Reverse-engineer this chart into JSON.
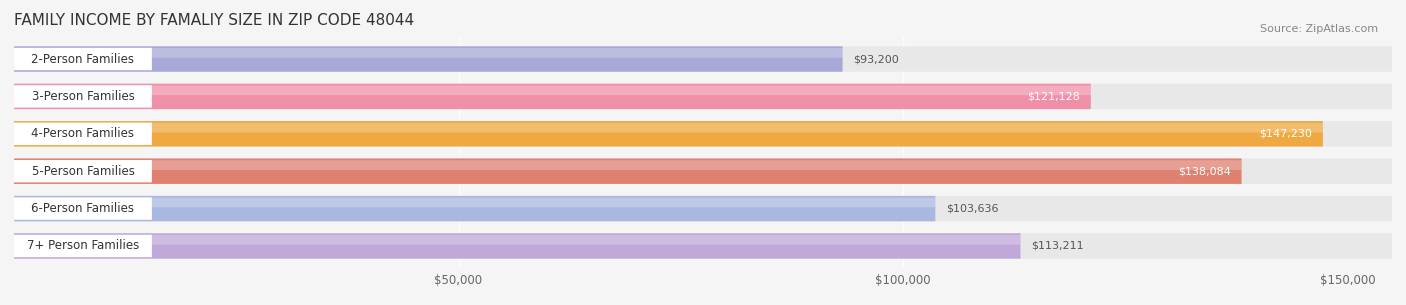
{
  "title": "FAMILY INCOME BY FAMALIY SIZE IN ZIP CODE 48044",
  "source": "Source: ZipAtlas.com",
  "categories": [
    "2-Person Families",
    "3-Person Families",
    "4-Person Families",
    "5-Person Families",
    "6-Person Families",
    "7+ Person Families"
  ],
  "values": [
    93200,
    121128,
    147230,
    138084,
    103636,
    113211
  ],
  "bar_colors": [
    "#a8a8d8",
    "#f090a8",
    "#f0a840",
    "#e08070",
    "#a8b8e0",
    "#c0a8d8"
  ],
  "label_colors": [
    "#444444",
    "#ffffff",
    "#ffffff",
    "#ffffff",
    "#444444",
    "#ffffff"
  ],
  "background_color": "#f5f5f5",
  "bar_background": "#e8e8e8",
  "xlim": [
    0,
    155000
  ],
  "xticks": [
    0,
    50000,
    100000,
    150000
  ],
  "xticklabels": [
    "",
    "$50,000",
    "$100,000",
    "$150,000"
  ],
  "title_fontsize": 11,
  "source_fontsize": 8,
  "bar_height": 0.68,
  "figsize": [
    14.06,
    3.05
  ],
  "dpi": 100
}
